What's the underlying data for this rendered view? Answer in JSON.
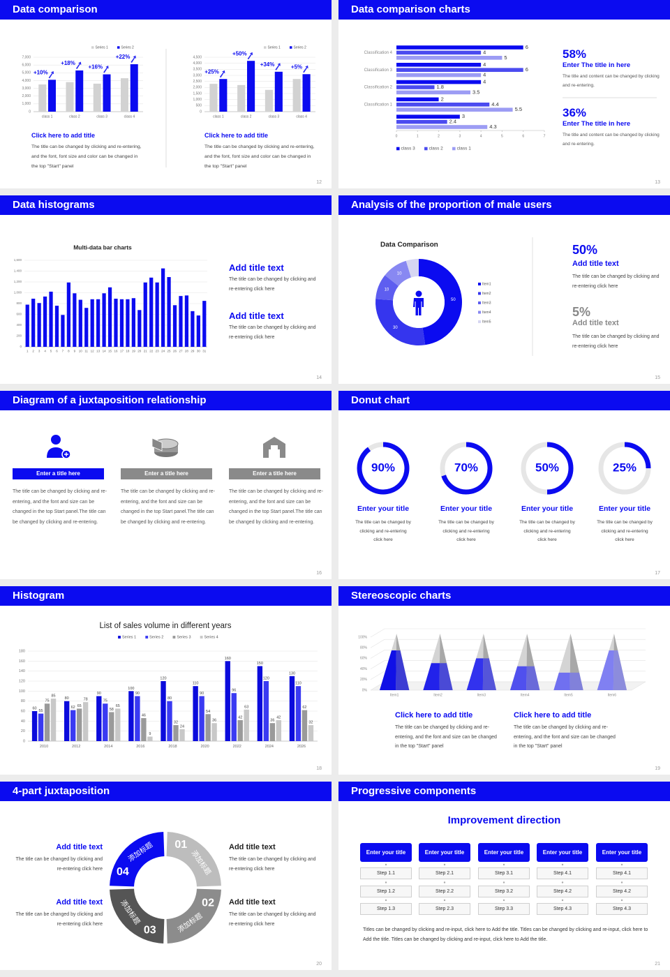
{
  "slides": [
    {
      "title": "Data comparison",
      "page": "12",
      "charts": [
        {
          "type": "bar",
          "categories": [
            "class 1",
            "class 2",
            "class 3",
            "class 4"
          ],
          "series": [
            {
              "name": "Series 1",
              "color": "#d2d2d2",
              "values": [
                3500,
                3800,
                3600,
                4300
              ]
            },
            {
              "name": "Series 2",
              "color": "#0b0bf0",
              "values": [
                4100,
                5300,
                4800,
                6100
              ]
            }
          ],
          "annotations": [
            "+10%",
            "+18%",
            "+16%",
            "+22%"
          ],
          "ylim": [
            0,
            7000
          ],
          "yticks": [
            0,
            {
              "value": 1000,
              "label": "1,000"
            },
            {
              "value": 2000,
              "label": "2,000"
            },
            {
              "value": 3000,
              "label": "3,000"
            },
            {
              "value": 4000,
              "label": "4,000"
            },
            {
              "value": 5000,
              "label": "5,000"
            },
            {
              "value": 6000,
              "label": "6,000"
            },
            {
              "value": 7000,
              "label": "7,000"
            }
          ],
          "grid": true,
          "legend": "top-right"
        },
        {
          "type": "bar",
          "categories": [
            "class 1",
            "class 2",
            "class 3",
            "class 4"
          ],
          "series": [
            {
              "name": "Series 1",
              "color": "#d2d2d2",
              "values": [
                2300,
                2200,
                1800,
                2700
              ]
            },
            {
              "name": "Series 2",
              "color": "#0b0bf0",
              "values": [
                2700,
                4200,
                3300,
                3100
              ]
            }
          ],
          "annotations": [
            "+25%",
            "+50%",
            "+34%",
            "+5%"
          ],
          "ylim": [
            0,
            4500
          ],
          "yticks": [
            0,
            500,
            {
              "value": 1000,
              "label": "1,000"
            },
            {
              "value": 1500,
              "label": "1,500"
            },
            {
              "value": 2000,
              "label": "2,000"
            },
            {
              "value": 2500,
              "label": "2,500"
            },
            {
              "value": 3000,
              "label": "3,000"
            },
            {
              "value": 3500,
              "label": "3,500"
            },
            {
              "value": 4000,
              "label": "4,000"
            },
            {
              "value": 4500,
              "label": "4,500"
            }
          ],
          "grid": true,
          "legend": "top-right"
        }
      ],
      "blocks": [
        {
          "title": "Click here to add title",
          "text": "The title can be changed by clicking and re-entering, and the font, font size and color can be changed in the top \"Start\" panel"
        },
        {
          "title": "Click here to add title",
          "text": "The title can be changed by clicking and re-entering, and the font, font size and color can be changed in the top \"Start\" panel"
        }
      ]
    },
    {
      "title": "Data comparison charts",
      "page": "13",
      "chart": {
        "type": "hbar",
        "categories": [
          null,
          "Classification 1",
          "Classification 2",
          "Classification 3",
          "Classification 4"
        ],
        "series": [
          {
            "name": "class 3",
            "color": "#0b0bf0",
            "values": [
              3,
              2,
              4,
              4,
              6
            ]
          },
          {
            "name": "class 2",
            "color": "#4b4bf0",
            "values": [
              2.4,
              4.4,
              1.8,
              6,
              4
            ]
          },
          {
            "name": "class 1",
            "color": "#9c9cf4",
            "values": [
              4.3,
              5.5,
              3.5,
              4,
              5
            ]
          }
        ],
        "xlim": [
          0,
          7
        ],
        "xticks": [
          0,
          1,
          2,
          3,
          4,
          5,
          6,
          7
        ],
        "legend": "bottom-left"
      },
      "blocks": [
        {
          "figure": "58%",
          "title": "Enter The title in here",
          "text": "The title and content can be changed by clicking and re-entering."
        },
        {
          "figure": "36%",
          "title": "Enter The title in here",
          "text": "The title and content can be changed by clicking and re-entering."
        }
      ]
    },
    {
      "title": "Data histograms",
      "page": "14",
      "chart": {
        "type": "bar",
        "title": "Multi-data bar charts",
        "categories": [
          "1",
          "2",
          "3",
          "4",
          "5",
          "6",
          "7",
          "8",
          "9",
          "10",
          "11",
          "12",
          "13",
          "14",
          "15",
          "16",
          "17",
          "18",
          "19",
          "20",
          "21",
          "22",
          "23",
          "24",
          "25",
          "26",
          "27",
          "28",
          "29",
          "30",
          "31"
        ],
        "series": [
          {
            "color": "#0b0bf0",
            "values": [
              780,
              890,
              810,
              930,
              1020,
              760,
              590,
              1190,
              990,
              870,
              720,
              880,
              880,
              990,
              1100,
              890,
              880,
              880,
              900,
              680,
              1190,
              1280,
              1190,
              1450,
              1290,
              770,
              940,
              950,
              660,
              580,
              850
            ]
          }
        ],
        "ylim": [
          0,
          1600
        ],
        "yticks": [
          0,
          200,
          400,
          600,
          800,
          {
            "value": 1000,
            "label": "1,000"
          },
          {
            "value": 1200,
            "label": "1,200"
          },
          {
            "value": 1400,
            "label": "1,400"
          },
          {
            "value": 1600,
            "label": "1,600"
          }
        ],
        "grid": true
      },
      "blocks": [
        {
          "title": "Add title text",
          "text": "The title can be changed by clicking and re-entering click here"
        },
        {
          "title": "Add title text",
          "text": "The title can be changed by clicking and re-entering click here"
        }
      ]
    },
    {
      "title": "Analysis of the proportion of male users",
      "page": "15",
      "chart": {
        "type": "donut",
        "title": "Data Comparison",
        "categories": [
          "Item1",
          "Item2",
          "Item3",
          "Item4",
          "Item5"
        ],
        "values": [
          50,
          30,
          10,
          10,
          5
        ],
        "value_labels": [
          "50",
          "30",
          "10",
          "10",
          null
        ],
        "colors": [
          "#0b0bf0",
          "#3535ee",
          "#5e5ef0",
          "#8888f2",
          "#d6d6f2"
        ],
        "legend": "right"
      },
      "blocks": [
        {
          "figure": "50%",
          "title": "Add title text",
          "text": "The title can be changed by clicking and re-entering click here"
        },
        {
          "figure": "5%",
          "title": "Add title text",
          "text": "The title can be changed by clicking and re-entering click here"
        }
      ]
    },
    {
      "title": "Diagram of a juxtaposition relationship",
      "page": "16",
      "blocks": [
        {
          "title": "Enter a title here",
          "text": "The title can be changed by clicking and re-entering, and the font and size can be changed in the top Start panel.The title can be changed by clicking and re-entering."
        },
        {
          "title": "Enter a title here",
          "text": "The title can be changed by clicking and re-entering, and the font and size can be changed in the top Start panel.The title can be changed by clicking and re-entering."
        },
        {
          "title": "Enter a title here",
          "text": "The title can be changed by clicking and re-entering, and the font and size can be changed in the top Start panel.The title can be changed by clicking and re-entering."
        }
      ]
    },
    {
      "title": "Donut chart",
      "page": "17",
      "chart": {
        "type": "rings",
        "lim": [
          0,
          100
        ],
        "color": "#0b0bf0",
        "items": [
          {
            "value": 90,
            "label": "90%",
            "title": "Enter your title",
            "text": "The title can be changed by clicking and re-entering click here"
          },
          {
            "value": 70,
            "label": "70%",
            "title": "Enter your title",
            "text": "The title can be changed by clicking and re-entering click here"
          },
          {
            "value": 50,
            "label": "50%",
            "title": "Enter your title",
            "text": "The title can be changed by clicking and re-entering click here"
          },
          {
            "value": 25,
            "label": "25%",
            "title": "Enter your title",
            "text": "The title can be changed by clicking and re-entering click here"
          }
        ]
      }
    },
    {
      "title": "Histogram",
      "page": "18",
      "chart": {
        "type": "bar",
        "title": "List of sales volume in different years",
        "categories": [
          "2010",
          "2012",
          "2014",
          "2016",
          "2018",
          "2020",
          "2022",
          "2024",
          "2026"
        ],
        "series": [
          {
            "name": "Series 1",
            "color": "#0b0bdc",
            "values": [
              60,
              80,
              90,
              100,
              120,
              110,
              160,
              150,
              130
            ]
          },
          {
            "name": "Series 2",
            "color": "#3a3af2",
            "values": [
              55,
              62,
              75,
              90,
              80,
              90,
              96,
              120,
              110
            ]
          },
          {
            "name": "Series 3",
            "color": "#9a9a9a",
            "values": [
              75,
              65,
              58,
              46,
              32,
              54,
              42,
              36,
              62
            ]
          },
          {
            "name": "Series 4",
            "color": "#c8c8c8",
            "values": [
              85,
              78,
              65,
              9,
              24,
              36,
              63,
              42,
              32
            ]
          }
        ],
        "ylim": [
          0,
          180
        ],
        "yticks": [
          0,
          20,
          40,
          60,
          80,
          100,
          120,
          140,
          160,
          180
        ],
        "grid": true,
        "data_labels": true,
        "legend": "top"
      }
    },
    {
      "title": "Stereoscopic charts",
      "page": "19",
      "chart": {
        "type": "pyramid",
        "categories": [
          "Item1",
          "Item2",
          "Item3",
          "Item4",
          "Item5",
          "Item6"
        ],
        "values": [
          75,
          51,
          60,
          45,
          33,
          75
        ],
        "colors": [
          "#1010e6",
          "#2222ea",
          "#3232ee",
          "#5050ee",
          "#7070f0",
          "#8080f2"
        ],
        "ylim": [
          0,
          100
        ],
        "yticks": [
          {
            "value": 0,
            "label": "0%"
          },
          {
            "value": 20,
            "label": "20%"
          },
          {
            "value": 40,
            "label": "40%"
          },
          {
            "value": 60,
            "label": "60%"
          },
          {
            "value": 80,
            "label": "80%"
          },
          {
            "value": 100,
            "label": "100%"
          }
        ],
        "grid": true
      },
      "blocks": [
        {
          "title": "Click here to add title",
          "text": "The title can be changed by clicking and re-entering, and the font and size can be changed in the top \"Start\" panel"
        },
        {
          "title": "Click here to add title",
          "text": "The title can be changed by clicking and re-entering, and the font and size can be changed in the top \"Start\" panel"
        }
      ]
    },
    {
      "title": "4-part juxtaposition",
      "page": "20",
      "segments": [
        {
          "number": "01",
          "label": "添加标题"
        },
        {
          "number": "02",
          "label": "添加标题"
        },
        {
          "number": "03",
          "label": "添加标题"
        },
        {
          "number": "04",
          "label": "添加标题"
        }
      ],
      "blocks": [
        {
          "title": "Add title text",
          "text": "The title can be changed by clicking and re-entering click here"
        },
        {
          "title": "Add title text",
          "text": "The title can be changed by clicking and re-entering click here"
        },
        {
          "title": "Add title text",
          "text": "The title can be changed by clicking and re-entering click here"
        },
        {
          "title": "Add title text",
          "text": "The title can be changed by clicking and re-entering click here"
        }
      ]
    },
    {
      "title": "Progressive components",
      "page": "21",
      "heading": "Improvement direction",
      "columns": [
        {
          "title": "Enter your title",
          "steps": [
            "Step 1.1",
            "Step 1.2",
            "Step 1.3"
          ]
        },
        {
          "title": "Enter your title",
          "steps": [
            "Step 2.1",
            "Step 2.2",
            "Step 2.3"
          ]
        },
        {
          "title": "Enter your title",
          "steps": [
            "Step 3.1",
            "Step 3.2",
            "Step 3.3"
          ]
        },
        {
          "title": "Enter your title",
          "steps": [
            "Step 4.1",
            "Step 4.2",
            "Step 4.3"
          ]
        },
        {
          "title": "Enter your title",
          "steps": [
            "Step 4.1",
            "Step 4.2",
            "Step 4.3"
          ]
        }
      ],
      "footer": "Titles can be changed by clicking and re-input, click here to Add the title. Titles can be changed by clicking and re-input, click here to Add the title. Titles can be changed by clicking and re-input, click here to Add the title."
    }
  ]
}
